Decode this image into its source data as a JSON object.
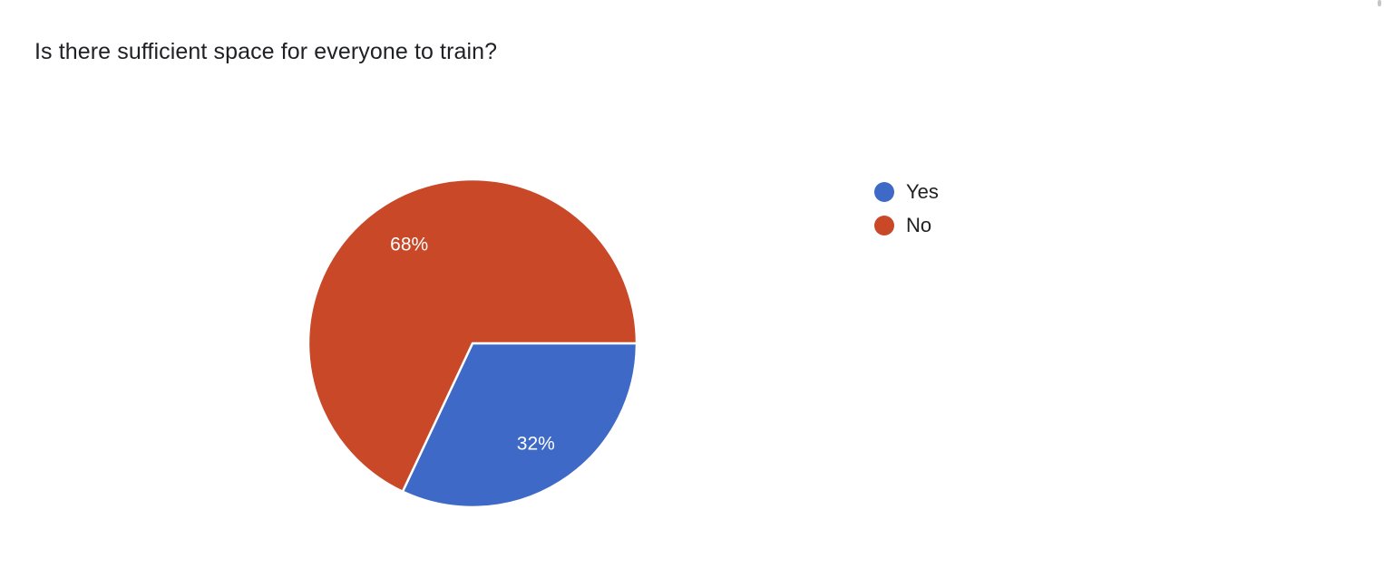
{
  "text_color": "#202124",
  "legend_text_color": "#212121",
  "chart_data": {
    "type": "pie",
    "title": "Is there sufficient space for everyone to train?",
    "legend_position": "right",
    "start_angle_deg": 0,
    "direction": "clockwise",
    "label_color": "#ffffff",
    "slices": [
      {
        "label": "Yes",
        "percent": 32,
        "data_label": "32%",
        "color": "#3E69C6"
      },
      {
        "label": "No",
        "percent": 68,
        "data_label": "68%",
        "color": "#C84827"
      }
    ]
  }
}
